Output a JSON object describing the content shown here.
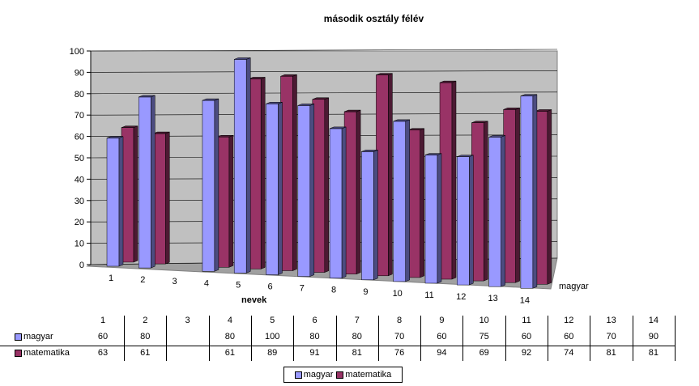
{
  "chart_data": {
    "type": "bar",
    "title": "második osztály félév",
    "xlabel": "nevek",
    "ylabel": "",
    "ylim": [
      0,
      100
    ],
    "yticks": [
      "0",
      "10",
      "20",
      "30",
      "40",
      "50",
      "60",
      "70",
      "80",
      "90",
      "100"
    ],
    "categories": [
      "1",
      "2",
      "3",
      "4",
      "5",
      "6",
      "7",
      "8",
      "9",
      "10",
      "11",
      "12",
      "13",
      "14"
    ],
    "depth_label": "magyar",
    "series": [
      {
        "name": "magyar",
        "color": "#9999ff",
        "side_color": "#4c4c80",
        "values": [
          60,
          80,
          null,
          80,
          100,
          80,
          80,
          70,
          60,
          75,
          60,
          60,
          70,
          90
        ],
        "table": [
          "60",
          "80",
          "",
          "80",
          "100",
          "80",
          "80",
          "70",
          "60",
          "75",
          "60",
          "60",
          "70",
          "90"
        ]
      },
      {
        "name": "matematika",
        "color": "#993366",
        "side_color": "#4c1a33",
        "values": [
          63,
          61,
          null,
          61,
          89,
          91,
          81,
          76,
          94,
          69,
          92,
          74,
          81,
          81
        ],
        "table": [
          "63",
          "61",
          "",
          "61",
          "89",
          "91",
          "81",
          "76",
          "94",
          "69",
          "92",
          "74",
          "81",
          "81"
        ]
      }
    ],
    "legend": "bottom",
    "grid": true
  }
}
